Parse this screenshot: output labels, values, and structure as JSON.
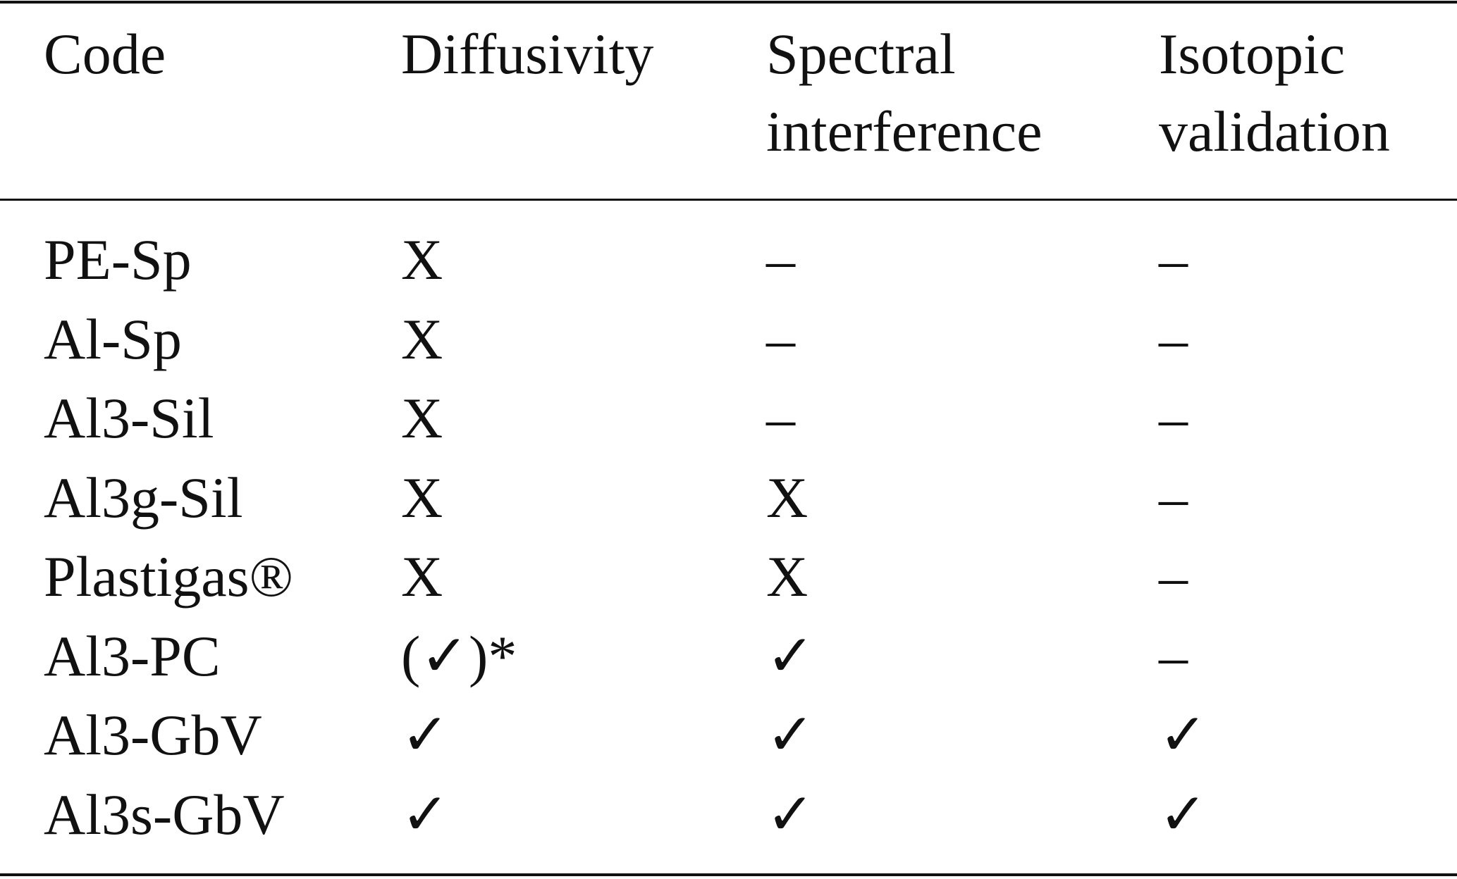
{
  "table": {
    "header": [
      "Code",
      "Diffusivity",
      "Spectral interference",
      "Isotopic validation"
    ],
    "rows": [
      [
        "PE-Sp",
        "X",
        "–",
        "–"
      ],
      [
        "Al-Sp",
        "X",
        "–",
        "–"
      ],
      [
        "Al3-Sil",
        "X",
        "–",
        "–"
      ],
      [
        "Al3g-Sil",
        "X",
        "X",
        "–"
      ],
      [
        "Plastigas®",
        "X",
        "X",
        "–"
      ],
      [
        "Al3-PC",
        "(✓)*",
        "✓",
        "–"
      ],
      [
        "Al3-GbV",
        "✓",
        "✓",
        "✓"
      ],
      [
        "Al3s-GbV",
        "✓",
        "✓",
        "✓"
      ]
    ]
  }
}
